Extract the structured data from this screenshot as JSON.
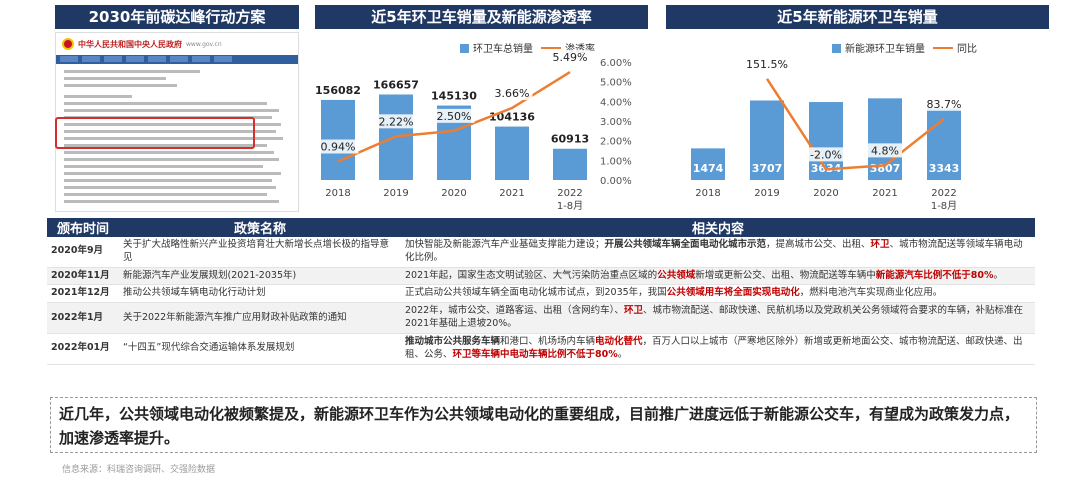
{
  "titles": {
    "left": "2030年前碳达峰行动方案",
    "middle": "近5年环卫车销量及新能源渗透率",
    "right": "近5年新能源环卫车销量"
  },
  "document": {
    "site_name": "中华人民共和国中央人民政府",
    "site_url": "www.gov.cn"
  },
  "chart_data": [
    {
      "type": "bar",
      "title": "近5年环卫车销量及新能源渗透率",
      "categories": [
        "2018",
        "2019",
        "2020",
        "2021",
        "2022\n1-8月"
      ],
      "series": [
        {
          "name": "环卫车总销量",
          "type": "bar",
          "values": [
            156082,
            166657,
            145130,
            104136,
            60913
          ],
          "color": "#5b9bd5"
        },
        {
          "name": "渗透率",
          "type": "line",
          "values": [
            0.94,
            2.22,
            2.5,
            3.66,
            5.49
          ],
          "color": "#ed7d31",
          "axis": "right"
        }
      ],
      "data_labels_bar": [
        "156082",
        "166657",
        "145130",
        "104136",
        "60913"
      ],
      "data_labels_line": [
        "0.94%",
        "2.22%",
        "2.50%",
        "3.66%",
        "5.49%"
      ],
      "y2_ticks": [
        "0.00%",
        "1.00%",
        "2.00%",
        "3.00%",
        "4.00%",
        "5.00%",
        "6.00%"
      ],
      "y2lim": [
        0,
        6
      ],
      "ylim": [
        0,
        230000
      ],
      "legend": "top"
    },
    {
      "type": "bar",
      "title": "近5年新能源环卫车销量",
      "categories": [
        "2018",
        "2019",
        "2020",
        "2021",
        "2022\n1-8月"
      ],
      "series": [
        {
          "name": "新能源环卫车销量",
          "type": "bar",
          "values": [
            1474,
            3707,
            3634,
            3807,
            3343
          ],
          "color": "#5b9bd5"
        },
        {
          "name": "同比",
          "type": "line",
          "values": [
            null,
            151.5,
            -2.0,
            4.8,
            83.7
          ],
          "color": "#ed7d31",
          "axis": "right"
        }
      ],
      "data_labels_bar": [
        "1474",
        "3707",
        "3634",
        "3807",
        "3343"
      ],
      "data_labels_line": [
        "",
        "151.5%",
        "-2.0%",
        "4.8%",
        "83.7%"
      ],
      "ylim": [
        0,
        5500
      ],
      "y2lim": [
        -20,
        180
      ],
      "legend": "top"
    }
  ],
  "table": {
    "headers": [
      "颁布时间",
      "政策名称",
      "相关内容"
    ],
    "rows": [
      {
        "date": "2020年9月",
        "name": "关于扩大战略性新兴产业投资培育壮大新增长点增长极的指导意见",
        "content": [
          {
            "t": "加快智能及新能源汽车产业基础支撑能力建设；",
            "s": ""
          },
          {
            "t": "开展公共领域车辆全面电动化城市示范",
            "s": "bd"
          },
          {
            "t": "，提高城市公交、出租、",
            "s": ""
          },
          {
            "t": "环卫",
            "s": "hl"
          },
          {
            "t": "、城市物流配送等领域车辆电动化比例。",
            "s": ""
          }
        ]
      },
      {
        "date": "2020年11月",
        "name": "新能源汽车产业发展规划(2021-2035年)",
        "content": [
          {
            "t": "2021年起，国家生态文明试验区、大气污染防治重点区域的",
            "s": ""
          },
          {
            "t": "公共领域",
            "s": "hl"
          },
          {
            "t": "新增或更新公交、出租、物流配送等车辆中",
            "s": ""
          },
          {
            "t": "新能源汽车比例不低于80%",
            "s": "hl"
          },
          {
            "t": "。",
            "s": ""
          }
        ]
      },
      {
        "date": "2021年12月",
        "name": "推动公共领域车辆电动化行动计划",
        "content": [
          {
            "t": "正式启动公共领域车辆全面电动化城市试点，到2035年，我国",
            "s": ""
          },
          {
            "t": "公共领域用车将全面实现电动化",
            "s": "hl"
          },
          {
            "t": "，燃料电池汽车实现商业化应用。",
            "s": ""
          }
        ]
      },
      {
        "date": "2022年1月",
        "name": "关于2022年新能源汽车推广应用财政补贴政策的通知",
        "content": [
          {
            "t": "2022年，城市公交、道路客运、出租（含网约车）、",
            "s": ""
          },
          {
            "t": "环卫",
            "s": "hl"
          },
          {
            "t": "、城市物流配送、邮政快递、民航机场以及党政机关公务领域符合要求的车辆，补贴标准在2021年基础上退坡20%。",
            "s": ""
          }
        ]
      },
      {
        "date": "2022年01月",
        "name": "“十四五”现代综合交通运输体系发展规划",
        "content": [
          {
            "t": "推动城市公共服务车辆",
            "s": "bd"
          },
          {
            "t": "和港口、机场场内车辆",
            "s": ""
          },
          {
            "t": "电动化替代",
            "s": "hl"
          },
          {
            "t": "，百万人口以上城市（严寒地区除外）新增或更新地面公交、城市物流配送、邮政快递、出租、公务、",
            "s": ""
          },
          {
            "t": "环卫等车辆中电动车辆比例不低于80%",
            "s": "hl"
          },
          {
            "t": "。",
            "s": ""
          }
        ]
      }
    ]
  },
  "summary": "近几年，公共领域电动化被频繁提及，新能源环卫车作为公共领域电动化的重要组成，目前推广进度远低于新能源公交车，有望成为政策发力点，加速渗透率提升。",
  "source": "信息来源：科瑞咨询调研、交强险数据"
}
